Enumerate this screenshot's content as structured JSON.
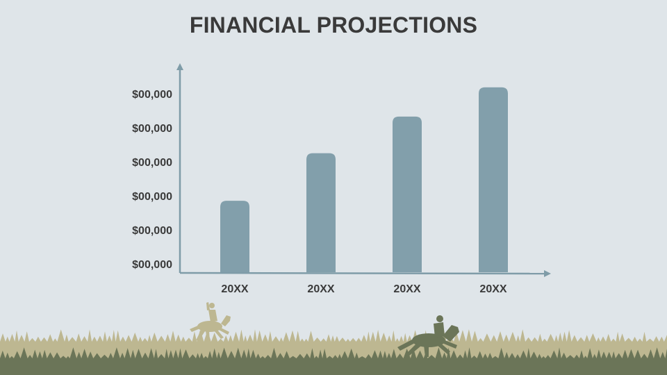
{
  "slide": {
    "title": "FINANCIAL PROJECTIONS"
  },
  "colors": {
    "background": "#dfe5e9",
    "bar": "#829fab",
    "axis": "#7f9ca8",
    "text": "#3a3a3a",
    "grass_light": "#bdb791",
    "grass_dark": "#6b7558"
  },
  "chart_data": {
    "type": "bar",
    "title": "",
    "xlabel": "",
    "ylabel": "",
    "categories": [
      "20XX",
      "20XX",
      "20XX",
      "20XX"
    ],
    "y_tick_labels": [
      "$00,000",
      "$00,000",
      "$00,000",
      "$00,000",
      "$00,000",
      "$00,000"
    ],
    "values": [
      1.95,
      3.25,
      4.25,
      5.05
    ],
    "ylim": [
      0,
      5.5
    ],
    "grid": false,
    "legend": "none"
  }
}
